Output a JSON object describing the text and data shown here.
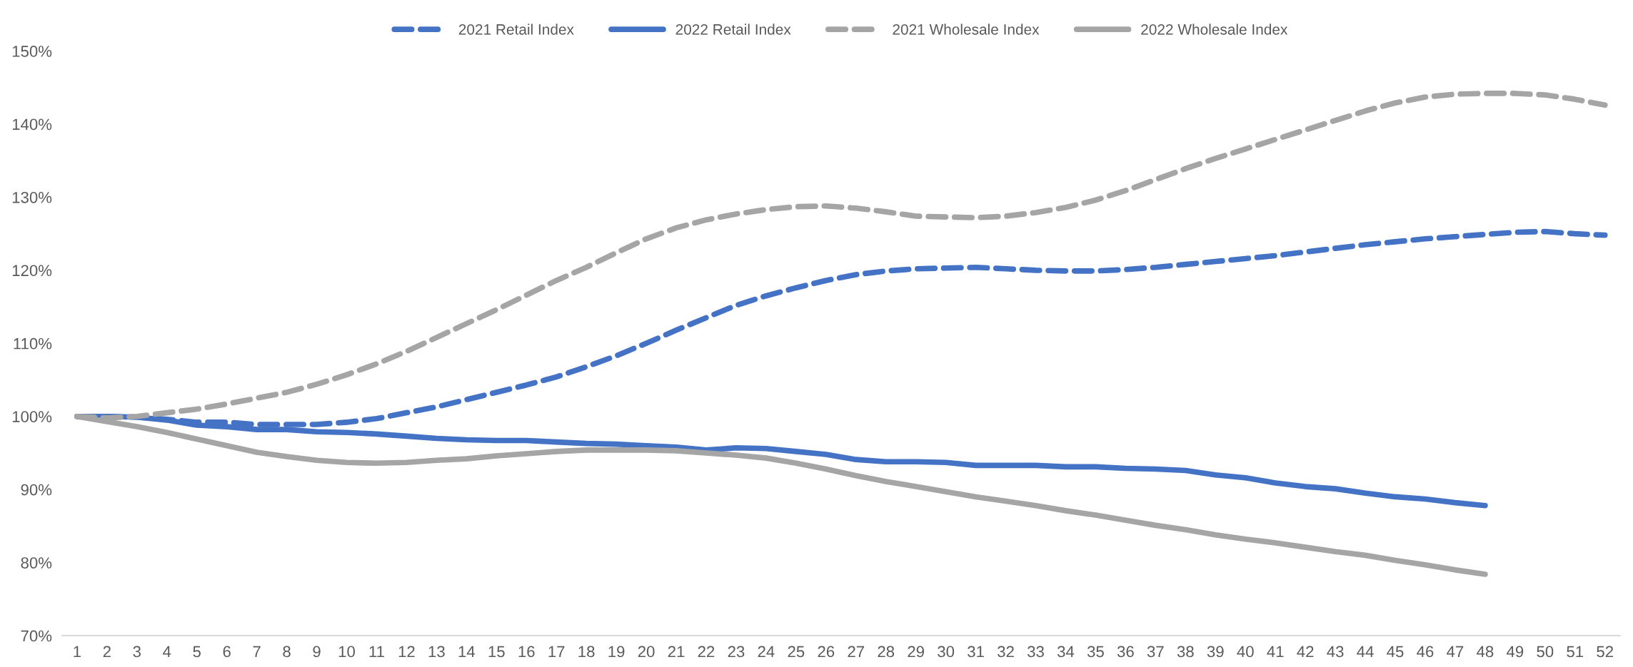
{
  "chart_data": {
    "type": "line",
    "categories": [
      "1",
      "2",
      "3",
      "4",
      "5",
      "6",
      "7",
      "8",
      "9",
      "10",
      "11",
      "12",
      "13",
      "14",
      "15",
      "16",
      "17",
      "18",
      "19",
      "20",
      "21",
      "22",
      "23",
      "24",
      "25",
      "26",
      "27",
      "28",
      "29",
      "30",
      "31",
      "32",
      "33",
      "34",
      "35",
      "36",
      "37",
      "38",
      "39",
      "40",
      "41",
      "42",
      "43",
      "44",
      "45",
      "46",
      "47",
      "48",
      "49",
      "50",
      "51",
      "52"
    ],
    "series": [
      {
        "name": "2021 Retail Index",
        "color": "#4472c4",
        "line_style": "dashed",
        "values": [
          100,
          100,
          99.9,
          99.6,
          99.2,
          99.2,
          98.9,
          98.9,
          98.9,
          99.2,
          99.7,
          100.5,
          101.3,
          102.3,
          103.3,
          104.3,
          105.4,
          106.8,
          108.3,
          110,
          111.8,
          113.5,
          115.2,
          116.5,
          117.6,
          118.6,
          119.4,
          119.9,
          120.2,
          120.3,
          120.4,
          120.2,
          120.0,
          119.9,
          119.9,
          120.1,
          120.4,
          120.8,
          121.2,
          121.6,
          122.0,
          122.5,
          123.0,
          123.5,
          123.9,
          124.3,
          124.6,
          124.9,
          125.2,
          125.3,
          125.0,
          124.8
        ]
      },
      {
        "name": "2022 Retail Index",
        "color": "#4472c4",
        "line_style": "solid",
        "values": [
          100,
          100,
          99.9,
          99.5,
          98.8,
          98.6,
          98.2,
          98.2,
          97.9,
          97.8,
          97.6,
          97.3,
          97.0,
          96.8,
          96.7,
          96.7,
          96.5,
          96.3,
          96.2,
          96.0,
          95.8,
          95.4,
          95.7,
          95.6,
          95.2,
          94.8,
          94.1,
          93.8,
          93.8,
          93.7,
          93.3,
          93.3,
          93.3,
          93.1,
          93.1,
          92.9,
          92.8,
          92.6,
          92.0,
          91.6,
          90.9,
          90.4,
          90.1,
          89.5,
          89.0,
          88.7,
          88.2,
          87.8,
          null,
          null,
          null,
          null
        ]
      },
      {
        "name": "2021 Wholesale Index",
        "color": "#a5a5a5",
        "line_style": "dashed",
        "values": [
          100,
          99.8,
          100,
          100.5,
          101,
          101.7,
          102.5,
          103.3,
          104.4,
          105.7,
          107.2,
          108.9,
          110.8,
          112.7,
          114.6,
          116.6,
          118.6,
          120.4,
          122.4,
          124.3,
          125.8,
          126.9,
          127.7,
          128.3,
          128.7,
          128.8,
          128.5,
          128.0,
          127.4,
          127.3,
          127.2,
          127.4,
          127.9,
          128.6,
          129.6,
          130.9,
          132.4,
          133.9,
          135.3,
          136.6,
          137.9,
          139.2,
          140.5,
          141.8,
          142.9,
          143.7,
          144.1,
          144.2,
          144.2,
          144.0,
          143.4,
          142.6
        ]
      },
      {
        "name": "2022 Wholesale Index",
        "color": "#a5a5a5",
        "line_style": "solid",
        "values": [
          100,
          99.3,
          98.6,
          97.8,
          96.9,
          96.0,
          95.1,
          94.5,
          94.0,
          93.7,
          93.6,
          93.7,
          94.0,
          94.2,
          94.6,
          94.9,
          95.2,
          95.4,
          95.4,
          95.4,
          95.3,
          95.0,
          94.7,
          94.3,
          93.6,
          92.8,
          91.9,
          91.1,
          90.4,
          89.7,
          89.0,
          88.4,
          87.8,
          87.1,
          86.5,
          85.8,
          85.1,
          84.5,
          83.8,
          83.2,
          82.7,
          82.1,
          81.5,
          81.0,
          80.3,
          79.7,
          79.0,
          78.4,
          null,
          null,
          null,
          null
        ]
      }
    ],
    "ylim": [
      70,
      150
    ],
    "yticks": [
      {
        "value": 70,
        "label": "70%"
      },
      {
        "value": 80,
        "label": "80%"
      },
      {
        "value": 90,
        "label": "90%"
      },
      {
        "value": 100,
        "label": "100%"
      },
      {
        "value": 110,
        "label": "110%"
      },
      {
        "value": 120,
        "label": "120%"
      },
      {
        "value": 130,
        "label": "130%"
      },
      {
        "value": 140,
        "label": "140%"
      },
      {
        "value": 150,
        "label": "150%"
      }
    ],
    "grid": false,
    "legend": "top",
    "marker": "none"
  }
}
